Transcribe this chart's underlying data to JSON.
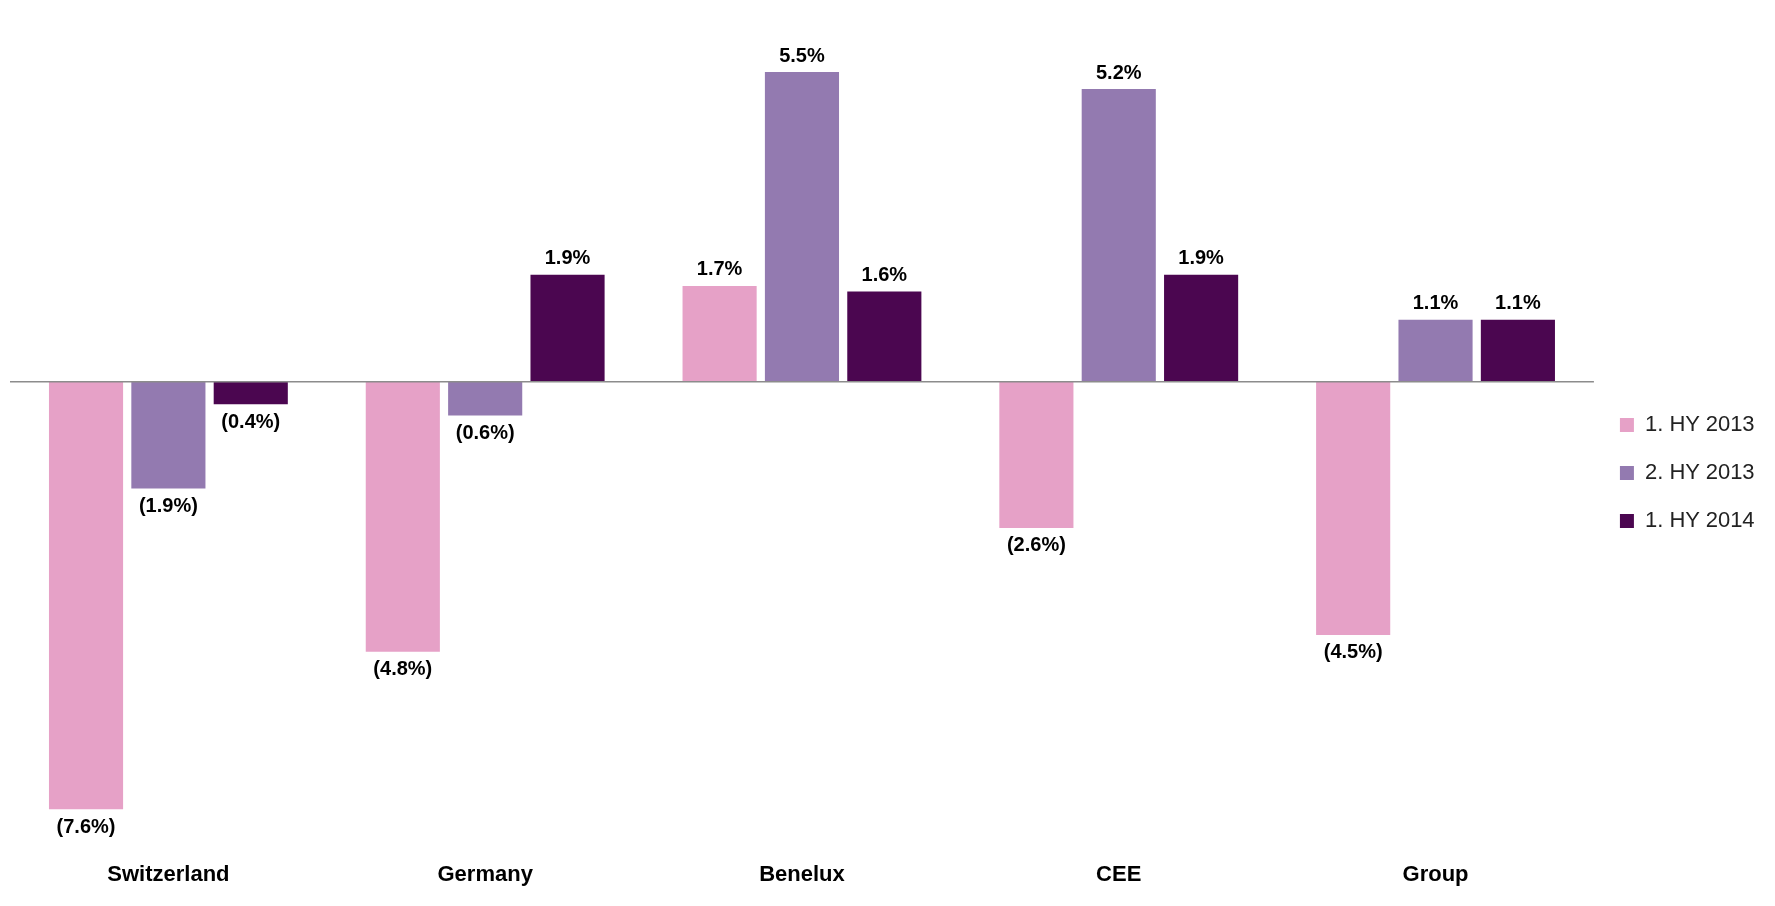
{
  "chart_data": {
    "type": "bar",
    "categories": [
      "Switzerland",
      "Germany",
      "Benelux",
      "CEE",
      "Group"
    ],
    "series": [
      {
        "name": "1. HY 2013",
        "color": "#e6a1c7",
        "values": [
          -7.6,
          -4.8,
          1.7,
          -2.6,
          -4.5
        ],
        "value_labels": [
          "(7.6%)",
          "(4.8%)",
          "1.7%",
          "(2.6%)",
          "(4.5%)"
        ]
      },
      {
        "name": "2. HY 2013",
        "color": "#937ab0",
        "values": [
          -1.9,
          -0.6,
          5.5,
          5.2,
          1.1
        ],
        "value_labels": [
          "(1.9%)",
          "(0.6%)",
          "5.5%",
          "5.2%",
          "1.1%"
        ]
      },
      {
        "name": "1. HY 2014",
        "color": "#4b0650",
        "values": [
          -0.4,
          1.9,
          1.6,
          1.9,
          1.1
        ],
        "value_labels": [
          "(0.4%)",
          "1.9%",
          "1.6%",
          "1.9%",
          "1.1%"
        ]
      }
    ],
    "legend": "right",
    "grid": false
  }
}
